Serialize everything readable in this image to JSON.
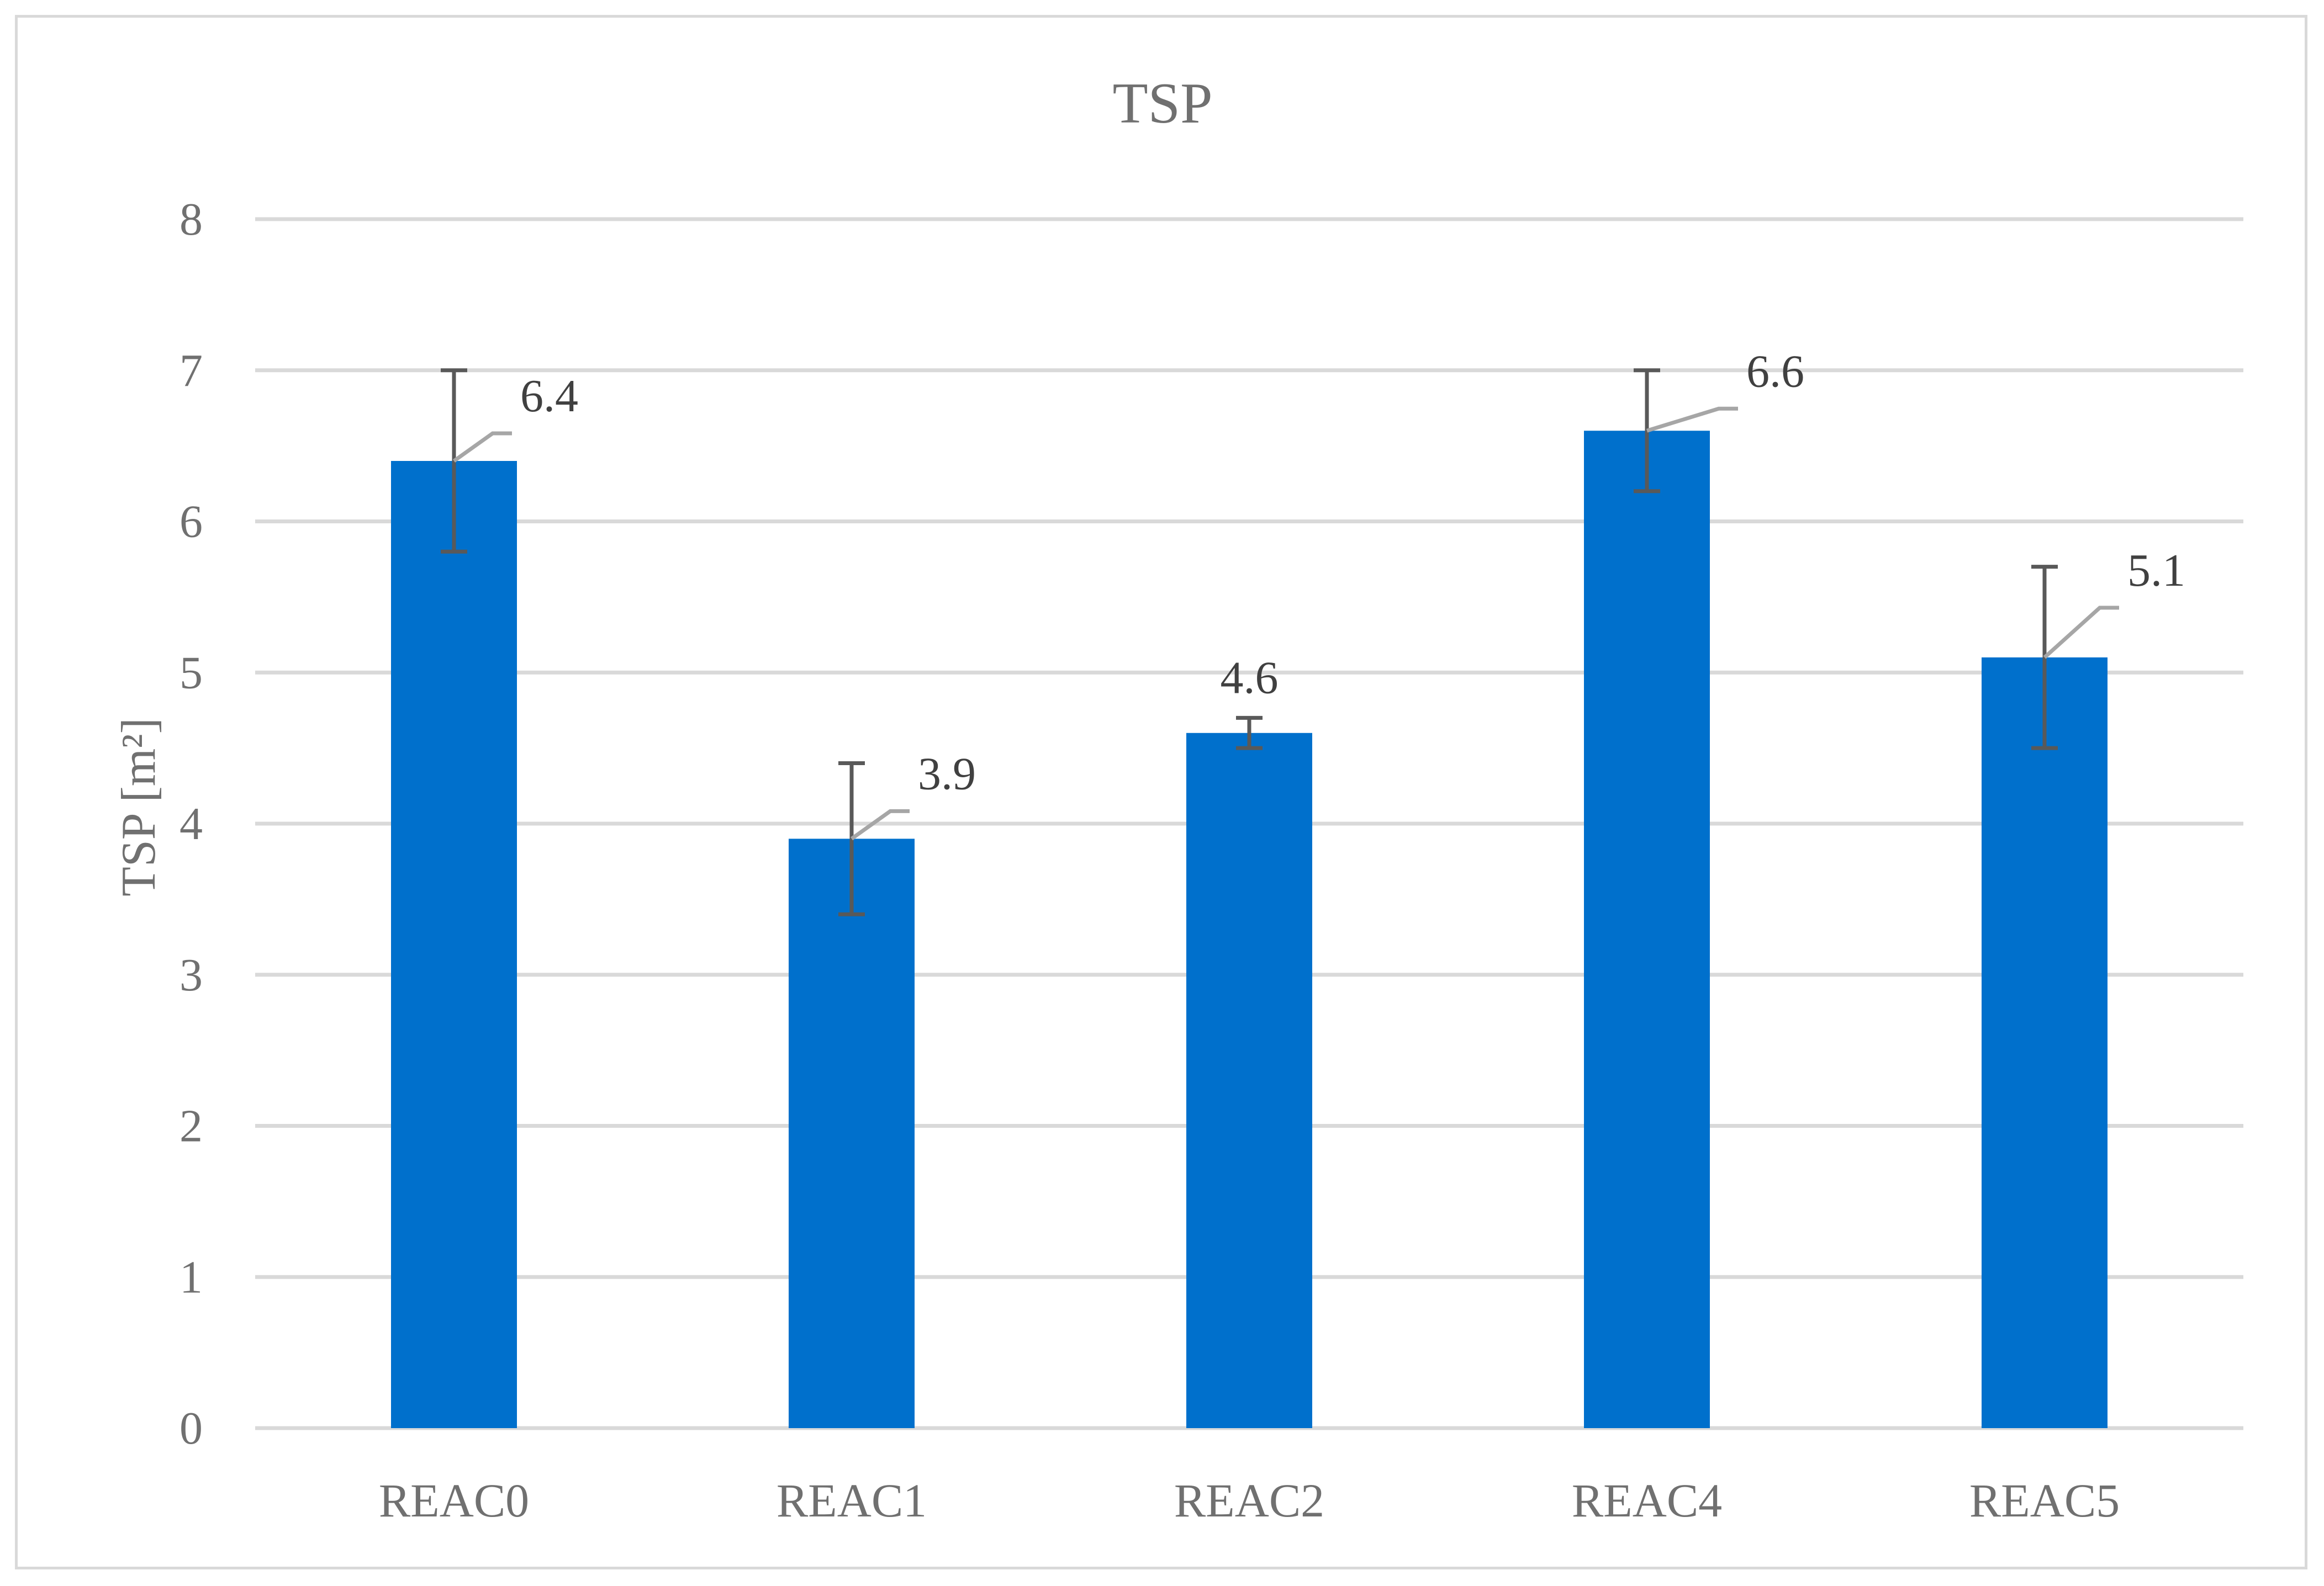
{
  "chart_data": {
    "type": "bar",
    "title": "TSP",
    "ylabel": "TSP [m²]",
    "xlabel": "",
    "categories": [
      "REAC0",
      "REAC1",
      "REAC2",
      "REAC4",
      "REAC5"
    ],
    "values": [
      6.4,
      3.9,
      4.6,
      6.6,
      5.1
    ],
    "error_upper": [
      7.0,
      4.4,
      4.7,
      7.0,
      5.7
    ],
    "error_lower": [
      5.8,
      3.4,
      4.5,
      6.2,
      4.5
    ],
    "data_labels": [
      "6.4",
      "3.9",
      "4.6",
      "6.6",
      "5.1"
    ],
    "ylim": [
      0,
      8
    ],
    "yticks": [
      "0",
      "1",
      "2",
      "3",
      "4",
      "5",
      "6",
      "7",
      "8"
    ],
    "grid": true,
    "legend": "none",
    "bar_color": "#0070cc",
    "error_bar_color": "#595959",
    "leader_line_color": "#a6a6a6",
    "gridline_color": "#d9d9d9"
  }
}
